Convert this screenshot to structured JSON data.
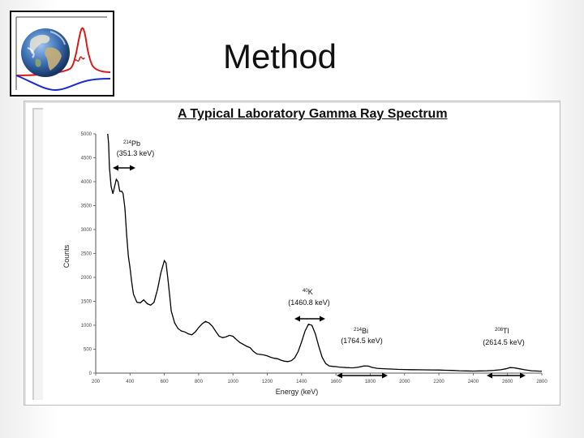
{
  "slide": {
    "title": "Method"
  },
  "logo": {
    "icon": "earth-globe-with-spectrum-curves-icon",
    "colors": {
      "curve_red": "#d81b1b",
      "curve_blue": "#1b2ccf"
    }
  },
  "chart_data": {
    "type": "line",
    "title": "A Typical Laboratory Gamma Ray Spectrum",
    "xlabel": "Energy (keV)",
    "ylabel": "Counts",
    "xlim": [
      200,
      2800
    ],
    "ylim": [
      0,
      5000
    ],
    "x_ticks": [
      200,
      400,
      600,
      800,
      1000,
      1200,
      1400,
      1600,
      1800,
      2000,
      2200,
      2400,
      2600,
      2800
    ],
    "y_ticks": [
      0,
      500,
      1000,
      1500,
      2000,
      2500,
      3000,
      3500,
      4000,
      4500,
      5000
    ],
    "grid": false,
    "series": [
      {
        "color": "#000000",
        "x": [
          270,
          275,
          280,
          290,
          300,
          310,
          320,
          330,
          340,
          352,
          360,
          370,
          380,
          390,
          400,
          410,
          420,
          440,
          460,
          480,
          500,
          520,
          540,
          560,
          580,
          600,
          610,
          620,
          630,
          640,
          660,
          680,
          700,
          720,
          740,
          760,
          780,
          800,
          820,
          840,
          860,
          880,
          900,
          920,
          940,
          960,
          980,
          1000,
          1020,
          1040,
          1060,
          1080,
          1100,
          1120,
          1140,
          1160,
          1180,
          1200,
          1220,
          1240,
          1260,
          1280,
          1300,
          1320,
          1340,
          1360,
          1380,
          1400,
          1420,
          1440,
          1460,
          1480,
          1500,
          1520,
          1540,
          1560,
          1580,
          1600,
          1620,
          1640,
          1660,
          1680,
          1700,
          1720,
          1740,
          1764,
          1790,
          1810,
          1840,
          1880,
          1920,
          1960,
          2000,
          2040,
          2080,
          2120,
          2160,
          2200,
          2240,
          2280,
          2320,
          2360,
          2400,
          2440,
          2480,
          2520,
          2560,
          2590,
          2614,
          2640,
          2670,
          2700,
          2740,
          2780,
          2800
        ],
        "y": [
          5000,
          4800,
          4300,
          3900,
          3750,
          3900,
          4050,
          4000,
          3800,
          3800,
          3750,
          3450,
          2900,
          2450,
          2200,
          1900,
          1650,
          1480,
          1470,
          1530,
          1450,
          1420,
          1480,
          1750,
          2100,
          2350,
          2300,
          2000,
          1650,
          1300,
          1050,
          930,
          880,
          860,
          820,
          800,
          860,
          950,
          1030,
          1080,
          1050,
          980,
          870,
          770,
          740,
          760,
          790,
          770,
          700,
          640,
          600,
          560,
          530,
          450,
          400,
          390,
          380,
          360,
          330,
          310,
          300,
          270,
          250,
          240,
          260,
          320,
          450,
          650,
          880,
          1020,
          1000,
          820,
          560,
          330,
          200,
          150,
          140,
          135,
          125,
          120,
          115,
          112,
          110,
          118,
          130,
          150,
          145,
          120,
          100,
          92,
          85,
          78,
          74,
          72,
          70,
          68,
          66,
          64,
          60,
          56,
          50,
          45,
          42,
          45,
          50,
          58,
          70,
          90,
          115,
          110,
          90,
          70,
          50,
          42,
          40
        ]
      }
    ],
    "annotations": [
      {
        "super": "214",
        "element": "Pb",
        "energy": "(351.3 keV)"
      },
      {
        "super": "40",
        "element": "K",
        "energy": "(1460.8 keV)"
      },
      {
        "super": "214",
        "element": "Bi",
        "energy": "(1764.5 keV)"
      },
      {
        "super": "208",
        "element": "Tl",
        "energy": "(2614.5 keV)"
      }
    ]
  }
}
